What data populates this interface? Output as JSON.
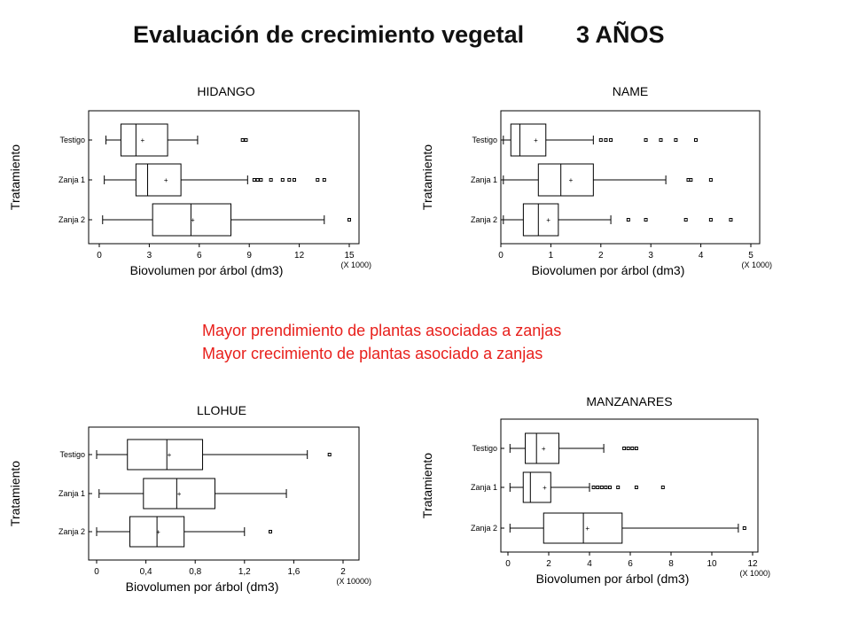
{
  "header": {
    "title": "Evaluación de crecimiento vegetal",
    "subtitle": "3 AÑOS"
  },
  "notes": [
    "Mayor prendimiento de plantas asociadas a zanjas",
    "Mayor crecimiento de plantas asociado a zanjas"
  ],
  "chart_data": [
    {
      "type": "boxplot",
      "title": "HIDANGO",
      "xlabel": "Biovolumen por árbol (dm3)",
      "ylabel": "Tratamiento",
      "scale_note": "(X 1000)",
      "xlim": [
        0,
        15
      ],
      "xticks": [
        0,
        3,
        6,
        9,
        12,
        15
      ],
      "tick_labels": [
        "0",
        "3",
        "6",
        "9",
        "12",
        "15"
      ],
      "categories": [
        "Testigo",
        "Zanja 1",
        "Zanja 2"
      ],
      "boxes": [
        {
          "category": "Testigo",
          "whisker_low": 0.4,
          "q1": 1.3,
          "median": 2.2,
          "q3": 4.1,
          "whisker_high": 5.9,
          "mean": 2.6,
          "outliers": [
            8.6,
            8.8
          ]
        },
        {
          "category": "Zanja 1",
          "whisker_low": 0.3,
          "q1": 2.2,
          "median": 2.9,
          "q3": 4.9,
          "whisker_high": 8.9,
          "mean": 4.0,
          "outliers": [
            9.3,
            9.5,
            9.7,
            10.3,
            11.0,
            11.4,
            11.7,
            13.1,
            13.5
          ]
        },
        {
          "category": "Zanja 2",
          "whisker_low": 0.2,
          "q1": 3.2,
          "median": 5.5,
          "q3": 7.9,
          "whisker_high": 13.5,
          "mean": 5.6,
          "outliers": [
            15.0
          ]
        }
      ]
    },
    {
      "type": "boxplot",
      "title": "NAME",
      "xlabel": "Biovolumen por árbol (dm3)",
      "ylabel": "Tratamiento",
      "scale_note": "(X 1000)",
      "xlim": [
        0,
        5
      ],
      "xticks": [
        0,
        1,
        2,
        3,
        4,
        5
      ],
      "tick_labels": [
        "0",
        "1",
        "2",
        "3",
        "4",
        "5"
      ],
      "categories": [
        "Testigo",
        "Zanja 1",
        "Zanja 2"
      ],
      "boxes": [
        {
          "category": "Testigo",
          "whisker_low": 0.05,
          "q1": 0.2,
          "median": 0.38,
          "q3": 0.9,
          "whisker_high": 1.85,
          "mean": 0.7,
          "outliers": [
            2.0,
            2.1,
            2.2,
            2.9,
            3.2,
            3.5,
            3.9
          ]
        },
        {
          "category": "Zanja 1",
          "whisker_low": 0.05,
          "q1": 0.75,
          "median": 1.2,
          "q3": 1.85,
          "whisker_high": 3.3,
          "mean": 1.4,
          "outliers": [
            3.75,
            3.8,
            4.2
          ]
        },
        {
          "category": "Zanja 2",
          "whisker_low": 0.05,
          "q1": 0.45,
          "median": 0.75,
          "q3": 1.15,
          "whisker_high": 2.2,
          "mean": 0.95,
          "outliers": [
            2.55,
            2.9,
            3.7,
            4.2,
            4.6
          ]
        }
      ]
    },
    {
      "type": "boxplot",
      "title": "LLOHUE",
      "xlabel": "Biovolumen por árbol (dm3)",
      "ylabel": "Tratamiento",
      "scale_note": "(X 10000)",
      "xlim": [
        0,
        2
      ],
      "xticks": [
        0,
        0.4,
        0.8,
        1.2,
        1.6,
        2
      ],
      "tick_labels": [
        "0",
        "0,4",
        "0,8",
        "1,2",
        "1,6",
        "2"
      ],
      "categories": [
        "Testigo",
        "Zanja 1",
        "Zanja 2"
      ],
      "boxes": [
        {
          "category": "Testigo",
          "whisker_low": 0.0,
          "q1": 0.25,
          "median": 0.57,
          "q3": 0.86,
          "whisker_high": 1.71,
          "mean": 0.59,
          "outliers": [
            1.89
          ]
        },
        {
          "category": "Zanja 1",
          "whisker_low": 0.02,
          "q1": 0.38,
          "median": 0.65,
          "q3": 0.96,
          "whisker_high": 1.54,
          "mean": 0.67,
          "outliers": []
        },
        {
          "category": "Zanja 2",
          "whisker_low": 0.0,
          "q1": 0.27,
          "median": 0.49,
          "q3": 0.71,
          "whisker_high": 1.2,
          "mean": 0.5,
          "outliers": [
            1.41
          ]
        }
      ]
    },
    {
      "type": "boxplot",
      "title": "MANZANARES",
      "xlabel": "Biovolumen por árbol (dm3)",
      "ylabel": "Tratamiento",
      "scale_note": "(X 1000)",
      "xlim": [
        0,
        12
      ],
      "xticks": [
        0,
        2,
        4,
        6,
        8,
        10,
        12
      ],
      "tick_labels": [
        "0",
        "2",
        "4",
        "6",
        "8",
        "10",
        "12"
      ],
      "categories": [
        "Testigo",
        "Zanja 1",
        "Zanja 2"
      ],
      "boxes": [
        {
          "category": "Testigo",
          "whisker_low": 0.1,
          "q1": 0.85,
          "median": 1.4,
          "q3": 2.5,
          "whisker_high": 4.7,
          "mean": 1.75,
          "outliers": [
            5.7,
            5.9,
            6.1,
            6.3
          ]
        },
        {
          "category": "Zanja 1",
          "whisker_low": 0.1,
          "q1": 0.75,
          "median": 1.1,
          "q3": 2.1,
          "whisker_high": 4.0,
          "mean": 1.8,
          "outliers": [
            4.2,
            4.4,
            4.6,
            4.8,
            5.0,
            5.4,
            6.3,
            7.6
          ]
        },
        {
          "category": "Zanja 2",
          "whisker_low": 0.1,
          "q1": 1.75,
          "median": 3.7,
          "q3": 5.6,
          "whisker_high": 11.3,
          "mean": 3.9,
          "outliers": [
            11.6
          ]
        }
      ]
    }
  ]
}
